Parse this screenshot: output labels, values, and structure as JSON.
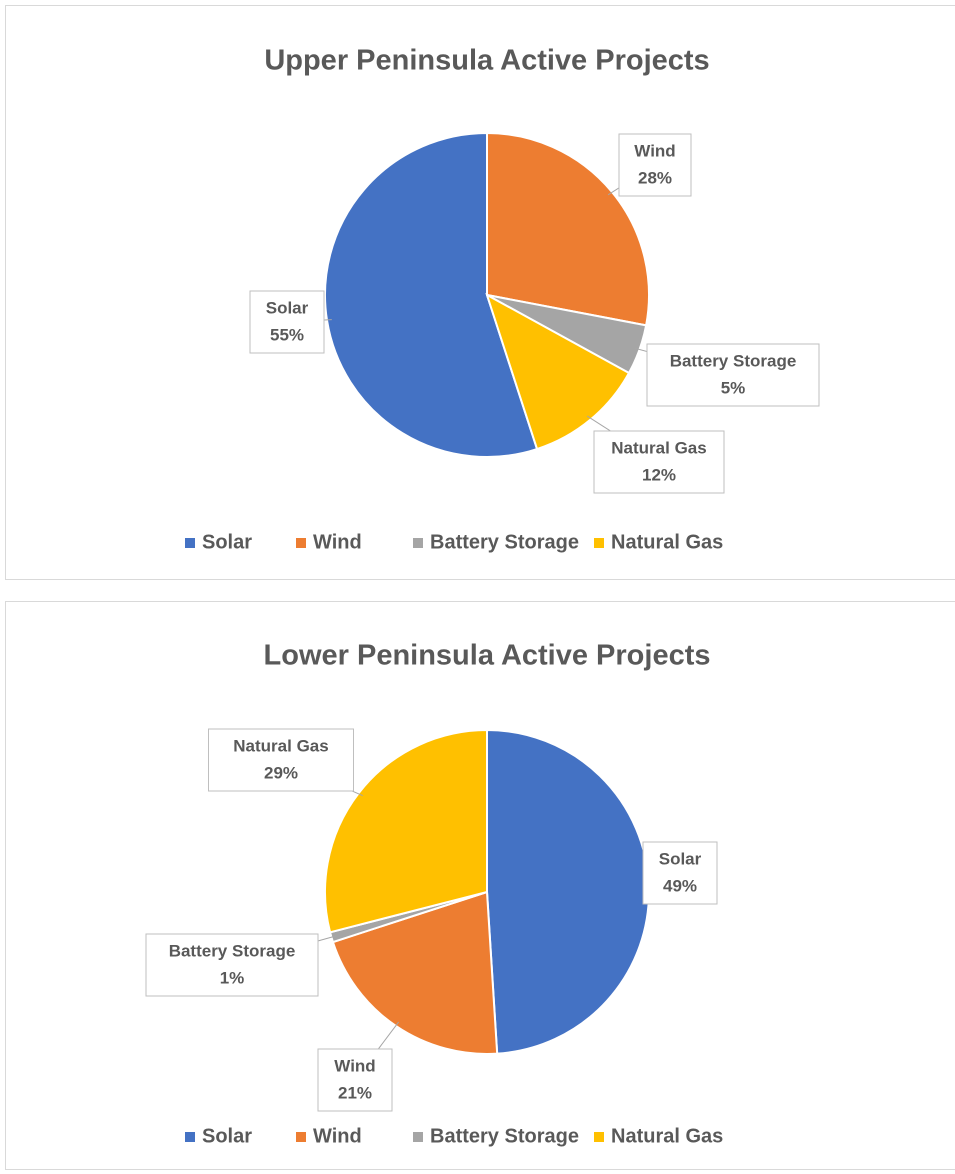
{
  "chart_data": [
    {
      "type": "pie",
      "title": "Upper Peninsula Active Projects",
      "categories": [
        "Solar",
        "Wind",
        "Battery Storage",
        "Natural Gas"
      ],
      "values": [
        55,
        28,
        5,
        12
      ],
      "value_labels": [
        "55%",
        "28%",
        "5%",
        "12%"
      ],
      "colors": [
        "#4472c4",
        "#ed7d31",
        "#a5a5a5",
        "#ffc000"
      ],
      "start_angle": 162,
      "legend": "bottom"
    },
    {
      "type": "pie",
      "title": "Lower Peninsula Active Projects",
      "categories": [
        "Solar",
        "Wind",
        "Battery Storage",
        "Natural Gas"
      ],
      "values": [
        49,
        21,
        1,
        29
      ],
      "value_labels": [
        "49%",
        "21%",
        "1%",
        "29%"
      ],
      "colors": [
        "#4472c4",
        "#ed7d31",
        "#a5a5a5",
        "#ffc000"
      ],
      "start_angle": 0,
      "legend": "bottom"
    }
  ]
}
